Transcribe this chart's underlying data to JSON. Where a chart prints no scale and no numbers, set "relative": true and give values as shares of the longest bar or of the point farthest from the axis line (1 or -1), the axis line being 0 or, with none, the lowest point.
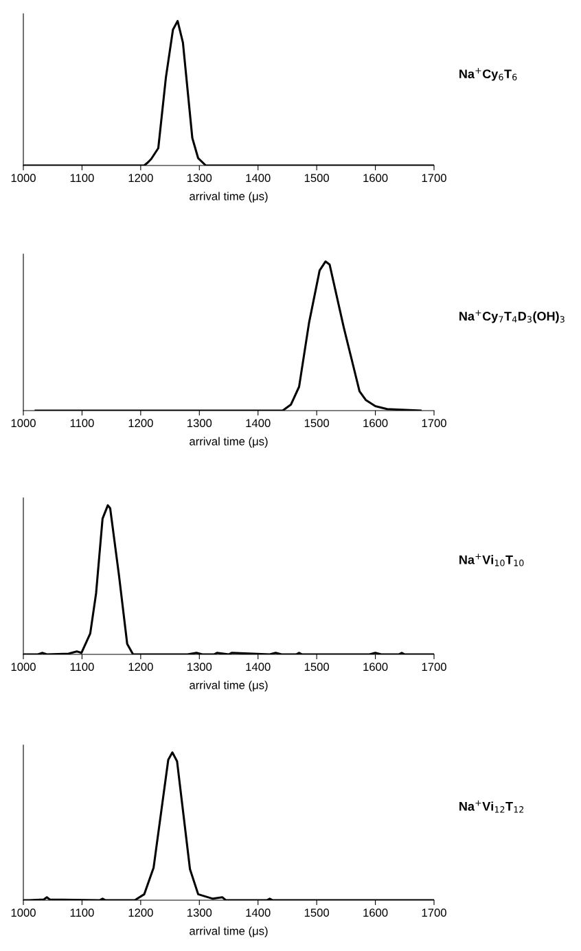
{
  "chart_data": [
    {
      "type": "line",
      "relative": true,
      "xlabel": "arrival time (μs)",
      "annotations": [
        "Na$^{+}$Cy$_{6}$T$_{6}$"
      ],
      "xlim": [
        1000,
        1700
      ],
      "xticks": [
        1000,
        1100,
        1200,
        1300,
        1400,
        1500,
        1600,
        1700
      ],
      "tick_labels": "x",
      "grid": false,
      "legend": false,
      "series": [
        {
          "color": "#000000",
          "x": [
            1000,
            1206,
            1212,
            1218,
            1230,
            1243,
            1255,
            1263,
            1272,
            1288,
            1298,
            1311,
            1700
          ],
          "values": [
            0,
            0,
            0.02,
            0.045,
            0.12,
            0.61,
            0.94,
            1.0,
            0.85,
            0.19,
            0.05,
            0,
            0
          ]
        }
      ]
    },
    {
      "type": "line",
      "relative": true,
      "xlabel": "arrival time (μs)",
      "annotations": [
        "Na$^{+}$Cy$_{7}$T$_{4}$D$_{3}$(OH)$_{3}$"
      ],
      "xlim": [
        1000,
        1700
      ],
      "xticks": [
        1000,
        1100,
        1200,
        1300,
        1400,
        1500,
        1600,
        1700
      ],
      "tick_labels": "x",
      "grid": false,
      "legend": false,
      "series": [
        {
          "color": "#000000",
          "x": [
            1021,
            1442,
            1456,
            1470,
            1487,
            1505,
            1515,
            1522,
            1546,
            1573,
            1584,
            1600,
            1620,
            1677
          ],
          "values": [
            0,
            0,
            0.04,
            0.16,
            0.59,
            0.94,
            1.0,
            0.98,
            0.56,
            0.13,
            0.07,
            0.03,
            0.01,
            0
          ]
        }
      ]
    },
    {
      "type": "line",
      "relative": true,
      "xlabel": "arrival time (μs)",
      "annotations": [
        "Na$^{+}$Vi$_{10}$T$_{10}$"
      ],
      "xlim": [
        1000,
        1700
      ],
      "xticks": [
        1000,
        1100,
        1200,
        1300,
        1400,
        1500,
        1600,
        1700
      ],
      "tick_labels": "x",
      "grid": false,
      "legend": false,
      "series": [
        {
          "color": "#000000",
          "x": [
            1000,
            1025,
            1032,
            1040,
            1077,
            1091,
            1099,
            1114,
            1124,
            1135,
            1144,
            1148,
            1163,
            1177,
            1187,
            1280,
            1295,
            1305,
            1325,
            1330,
            1350,
            1355,
            1420,
            1430,
            1440,
            1465,
            1470,
            1475,
            1590,
            1600,
            1610,
            1640,
            1645,
            1650,
            1700
          ],
          "values": [
            0,
            0,
            0.01,
            0,
            0.005,
            0.02,
            0.01,
            0.14,
            0.41,
            0.91,
            1.0,
            0.98,
            0.53,
            0.07,
            0,
            0,
            0.01,
            0,
            0,
            0.01,
            0,
            0.01,
            0,
            0.01,
            0,
            0,
            0.01,
            0,
            0,
            0.01,
            0,
            0,
            0.01,
            0,
            0
          ]
        }
      ]
    },
    {
      "type": "line",
      "relative": true,
      "xlabel": "arrival time (μs)",
      "annotations": [
        "Na$^{+}$Vi$_{12}$T$_{12}$"
      ],
      "xlim": [
        1000,
        1700
      ],
      "xticks": [
        1000,
        1100,
        1200,
        1300,
        1400,
        1500,
        1600,
        1700
      ],
      "tick_labels": "x",
      "grid": false,
      "legend": false,
      "series": [
        {
          "color": "#000000",
          "x": [
            1000,
            1010,
            1035,
            1040,
            1045,
            1130,
            1135,
            1140,
            1190,
            1206,
            1222,
            1247,
            1254,
            1262,
            1284,
            1298,
            1323,
            1339,
            1345,
            1415,
            1420,
            1425,
            1700
          ],
          "values": [
            0,
            0,
            0.005,
            0.02,
            0.005,
            0,
            0.01,
            0,
            0,
            0.04,
            0.22,
            0.95,
            1.0,
            0.94,
            0.21,
            0.04,
            0.01,
            0.02,
            0,
            0,
            0.01,
            0,
            0
          ]
        }
      ]
    }
  ]
}
